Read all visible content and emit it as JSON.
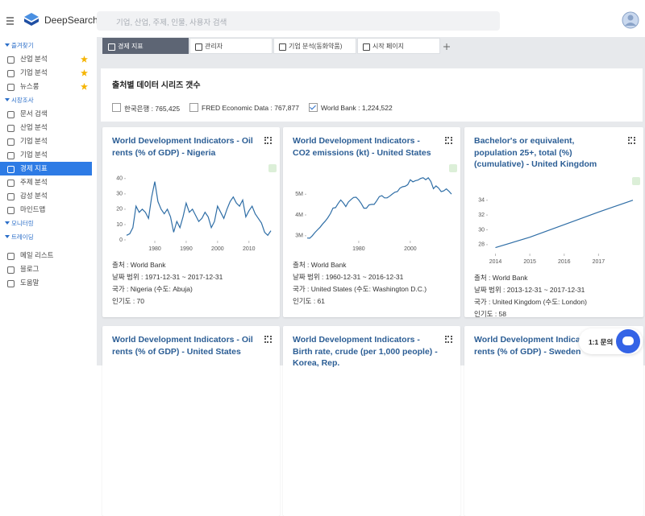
{
  "header": {
    "logo": "DeepSearch",
    "search_placeholder": "기업, 산업, 주제, 인물, 사용자 검색"
  },
  "sidebar": {
    "sections": [
      {
        "title": "즐겨찾기",
        "items": [
          {
            "label": "산업 분석",
            "starred": true
          },
          {
            "label": "기업 분석",
            "starred": true
          },
          {
            "label": "뉴스룸",
            "starred": true
          }
        ]
      },
      {
        "title": "시장조사",
        "items": [
          {
            "label": "문서 검색"
          },
          {
            "label": "산업 분석"
          },
          {
            "label": "기업 분석"
          },
          {
            "label": "기업 분석"
          },
          {
            "label": "경제 지표",
            "active": true
          },
          {
            "label": "주제 분석"
          },
          {
            "label": "감성 분석"
          },
          {
            "label": "마인드맵"
          }
        ]
      },
      {
        "title": "모니터링",
        "items": []
      },
      {
        "title": "트레이딩",
        "items": []
      }
    ],
    "footer": [
      "메일 리스트",
      "블로그",
      "도움말"
    ]
  },
  "tabs": [
    {
      "label": "경제 지표",
      "active": true
    },
    {
      "label": "관리자"
    },
    {
      "label": "기업 분석(동화약품)"
    },
    {
      "label": "시작 페이지"
    }
  ],
  "panel": {
    "title": "출처별 데이터 시리즈 갯수",
    "sources": [
      {
        "label": "한국은행 : 765,425",
        "checked": false
      },
      {
        "label": "FRED Economic Data : 767,877",
        "checked": false
      },
      {
        "label": "World Bank : 1,224,522",
        "checked": true
      }
    ]
  },
  "cards": [
    {
      "title": "World Development Indicators - Oil rents (% of GDP) - Nigeria",
      "chart": {
        "type": "line",
        "color": "#2f6ea6",
        "x": [
          1971,
          1972,
          1973,
          1974,
          1975,
          1976,
          1977,
          1978,
          1979,
          1980,
          1981,
          1982,
          1983,
          1984,
          1985,
          1986,
          1987,
          1988,
          1989,
          1990,
          1991,
          1992,
          1993,
          1994,
          1995,
          1996,
          1997,
          1998,
          1999,
          2000,
          2001,
          2002,
          2003,
          2004,
          2005,
          2006,
          2007,
          2008,
          2009,
          2010,
          2011,
          2012,
          2013,
          2014,
          2015,
          2016,
          2017
        ],
        "values": [
          3,
          4,
          8,
          22,
          18,
          20,
          18,
          14,
          28,
          38,
          25,
          20,
          17,
          20,
          15,
          5,
          12,
          8,
          15,
          24,
          18,
          20,
          16,
          12,
          14,
          18,
          15,
          8,
          12,
          22,
          18,
          14,
          20,
          25,
          28,
          24,
          22,
          26,
          15,
          19,
          22,
          17,
          14,
          11,
          5,
          3,
          6
        ],
        "xlim": [
          1971,
          2017
        ],
        "ylim": [
          0,
          42
        ],
        "xticks": [
          1980,
          1990,
          2000,
          2010
        ],
        "yticks": [
          0,
          10,
          20,
          30,
          40
        ]
      },
      "source": "출처 : World Bank",
      "date_range": "날짜 범위 : 1971-12-31 ~ 2017-12-31",
      "country": "국가 : Nigeria (수도: Abuja)",
      "popularity": "인기도 : 70"
    },
    {
      "title": "World Development Indicators - CO2 emissions (kt) - United States",
      "chart": {
        "type": "line",
        "color": "#2f6ea6",
        "x": [
          1960,
          1961,
          1962,
          1963,
          1964,
          1965,
          1966,
          1967,
          1968,
          1969,
          1970,
          1971,
          1972,
          1973,
          1974,
          1975,
          1976,
          1977,
          1978,
          1979,
          1980,
          1981,
          1982,
          1983,
          1984,
          1985,
          1986,
          1987,
          1988,
          1989,
          1990,
          1991,
          1992,
          1993,
          1994,
          1995,
          1996,
          1997,
          1998,
          1999,
          2000,
          2001,
          2002,
          2003,
          2004,
          2005,
          2006,
          2007,
          2008,
          2009,
          2010,
          2011,
          2012,
          2013,
          2014,
          2015,
          2016
        ],
        "values": [
          2890696,
          2880506,
          3001390,
          3153890,
          3285690,
          3409700,
          3566300,
          3704200,
          3866900,
          4064100,
          4328900,
          4355600,
          4550900,
          4723400,
          4580800,
          4405600,
          4620700,
          4742200,
          4840700,
          4853400,
          4723200,
          4549000,
          4325300,
          4328200,
          4484900,
          4510200,
          4507800,
          4688300,
          4885400,
          4929100,
          4823400,
          4823000,
          4902400,
          5005700,
          5093300,
          5125500,
          5290600,
          5359000,
          5381600,
          5457700,
          5693700,
          5595800,
          5652100,
          5680400,
          5756100,
          5789700,
          5697300,
          5789000,
          5614100,
          5263500,
          5395500,
          5289700,
          5119400,
          5159200,
          5254300,
          5141000,
          5006300
        ],
        "xlim": [
          1960,
          2016
        ],
        "ylim": [
          2800000,
          5900000
        ],
        "xticks": [
          1980,
          2000
        ],
        "yticks": [
          {
            "value": 3000000,
            "label": "3M"
          },
          {
            "value": 4000000,
            "label": "4M"
          },
          {
            "value": 5000000,
            "label": "5M"
          }
        ]
      },
      "source": "출처 : World Bank",
      "date_range": "날짜 범위 : 1960-12-31 ~ 2016-12-31",
      "country": "국가 : United States (수도: Washington D.C.)",
      "popularity": "인기도 : 61"
    },
    {
      "title": "Bachelor's or equivalent, population 25+, total (%) (cumulative) - United Kingdom",
      "chart": {
        "type": "line",
        "color": "#2f6ea6",
        "x": [
          2014,
          2015,
          2016,
          2017,
          2018
        ],
        "values": [
          27.6,
          29.0,
          30.7,
          32.4,
          34.0
        ],
        "xlim": [
          2013.8,
          2018
        ],
        "ylim": [
          26.9,
          35.6
        ],
        "xticks": [
          2014,
          2015,
          2016,
          2017
        ],
        "yticks": [
          28,
          30,
          32,
          34
        ]
      },
      "source": "출처 : World Bank",
      "date_range": "날짜 범위 : 2013-12-31 ~ 2017-12-31",
      "country": "국가 : United Kingdom (수도: London)",
      "popularity": "인기도 : 58"
    },
    {
      "title": "World Development Indicators - Oil rents (% of GDP) - United States"
    },
    {
      "title": "World Development Indicators - Birth rate, crude (per 1,000 people) - Korea, Rep."
    },
    {
      "title": "World Development Indicators - Oil rents (% of GDP) - Sweden"
    }
  ],
  "chat": {
    "label": "1:1 문의"
  }
}
